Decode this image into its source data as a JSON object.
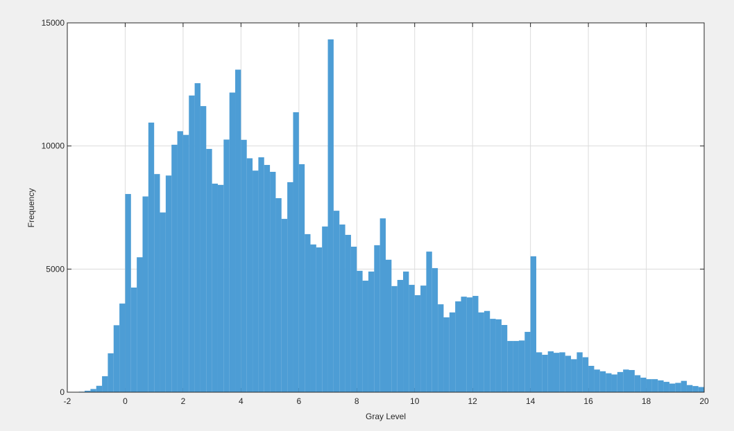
{
  "chart_data": {
    "type": "histogram",
    "xlabel": "Gray Level",
    "ylabel": "Frequency",
    "bins": [
      -1.8,
      -1.6,
      -1.4,
      -1.2,
      -1.0,
      -0.8,
      -0.6,
      -0.4,
      -0.2,
      0.0,
      0.2,
      0.4,
      0.6,
      0.8,
      1.0,
      1.2,
      1.4,
      1.6,
      1.8,
      2.0,
      2.2,
      2.4,
      2.6,
      2.8,
      3.0,
      3.2,
      3.4,
      3.6,
      3.8,
      4.0,
      4.2,
      4.4,
      4.6,
      4.8,
      5.0,
      5.2,
      5.4,
      5.6,
      5.8,
      6.0,
      6.2,
      6.4,
      6.6,
      6.8,
      7.0,
      7.2,
      7.4,
      7.6,
      7.8,
      8.0,
      8.2,
      8.4,
      8.6,
      8.8,
      9.0,
      9.2,
      9.4,
      9.6,
      9.8,
      10.0,
      10.2,
      10.4,
      10.6,
      10.8,
      11.0,
      11.2,
      11.4,
      11.6,
      11.8,
      12.0,
      12.2,
      12.4,
      12.6,
      12.8,
      13.0,
      13.2,
      13.4,
      13.6,
      13.8,
      14.0,
      14.2,
      14.4,
      14.6,
      14.8,
      15.0,
      15.2,
      15.4,
      15.6,
      15.8,
      16.0,
      16.2,
      16.4,
      16.6,
      16.8,
      17.0,
      17.2,
      17.4,
      17.6,
      17.8,
      18.0,
      18.2,
      18.4,
      18.6,
      18.8,
      19.0,
      19.2,
      19.4,
      19.6,
      19.8,
      20.0
    ],
    "values": [
      5,
      20,
      60,
      130,
      260,
      650,
      1580,
      2720,
      3600,
      8050,
      4250,
      5480,
      7950,
      10950,
      8860,
      7300,
      8800,
      10050,
      10600,
      10450,
      12050,
      12550,
      11620,
      9880,
      8470,
      8420,
      10260,
      12170,
      13100,
      10250,
      9500,
      9000,
      9540,
      9230,
      8950,
      7880,
      7040,
      8530,
      11370,
      9260,
      6420,
      6000,
      5880,
      6730,
      14330,
      7370,
      6810,
      6390,
      5910,
      4930,
      4530,
      4900,
      5970,
      7060,
      5380,
      4310,
      4560,
      4900,
      4360,
      3940,
      4330,
      5710,
      5040,
      3570,
      3040,
      3240,
      3690,
      3880,
      3850,
      3910,
      3240,
      3300,
      2980,
      2960,
      2730,
      2080,
      2080,
      2100,
      2450,
      5520,
      1620,
      1520,
      1660,
      1600,
      1620,
      1480,
      1340,
      1620,
      1420,
      1070,
      920,
      850,
      770,
      720,
      820,
      920,
      900,
      690,
      590,
      530,
      530,
      480,
      420,
      350,
      380,
      460,
      290,
      250,
      210
    ],
    "color": "#4d9dd5",
    "xlim": [
      -2,
      20
    ],
    "xticks": [
      -2,
      0,
      2,
      4,
      6,
      8,
      10,
      12,
      14,
      16,
      18,
      20
    ],
    "ylim": [
      0,
      15000
    ],
    "yticks": [
      0,
      5000,
      10000,
      15000
    ],
    "grid": true
  }
}
